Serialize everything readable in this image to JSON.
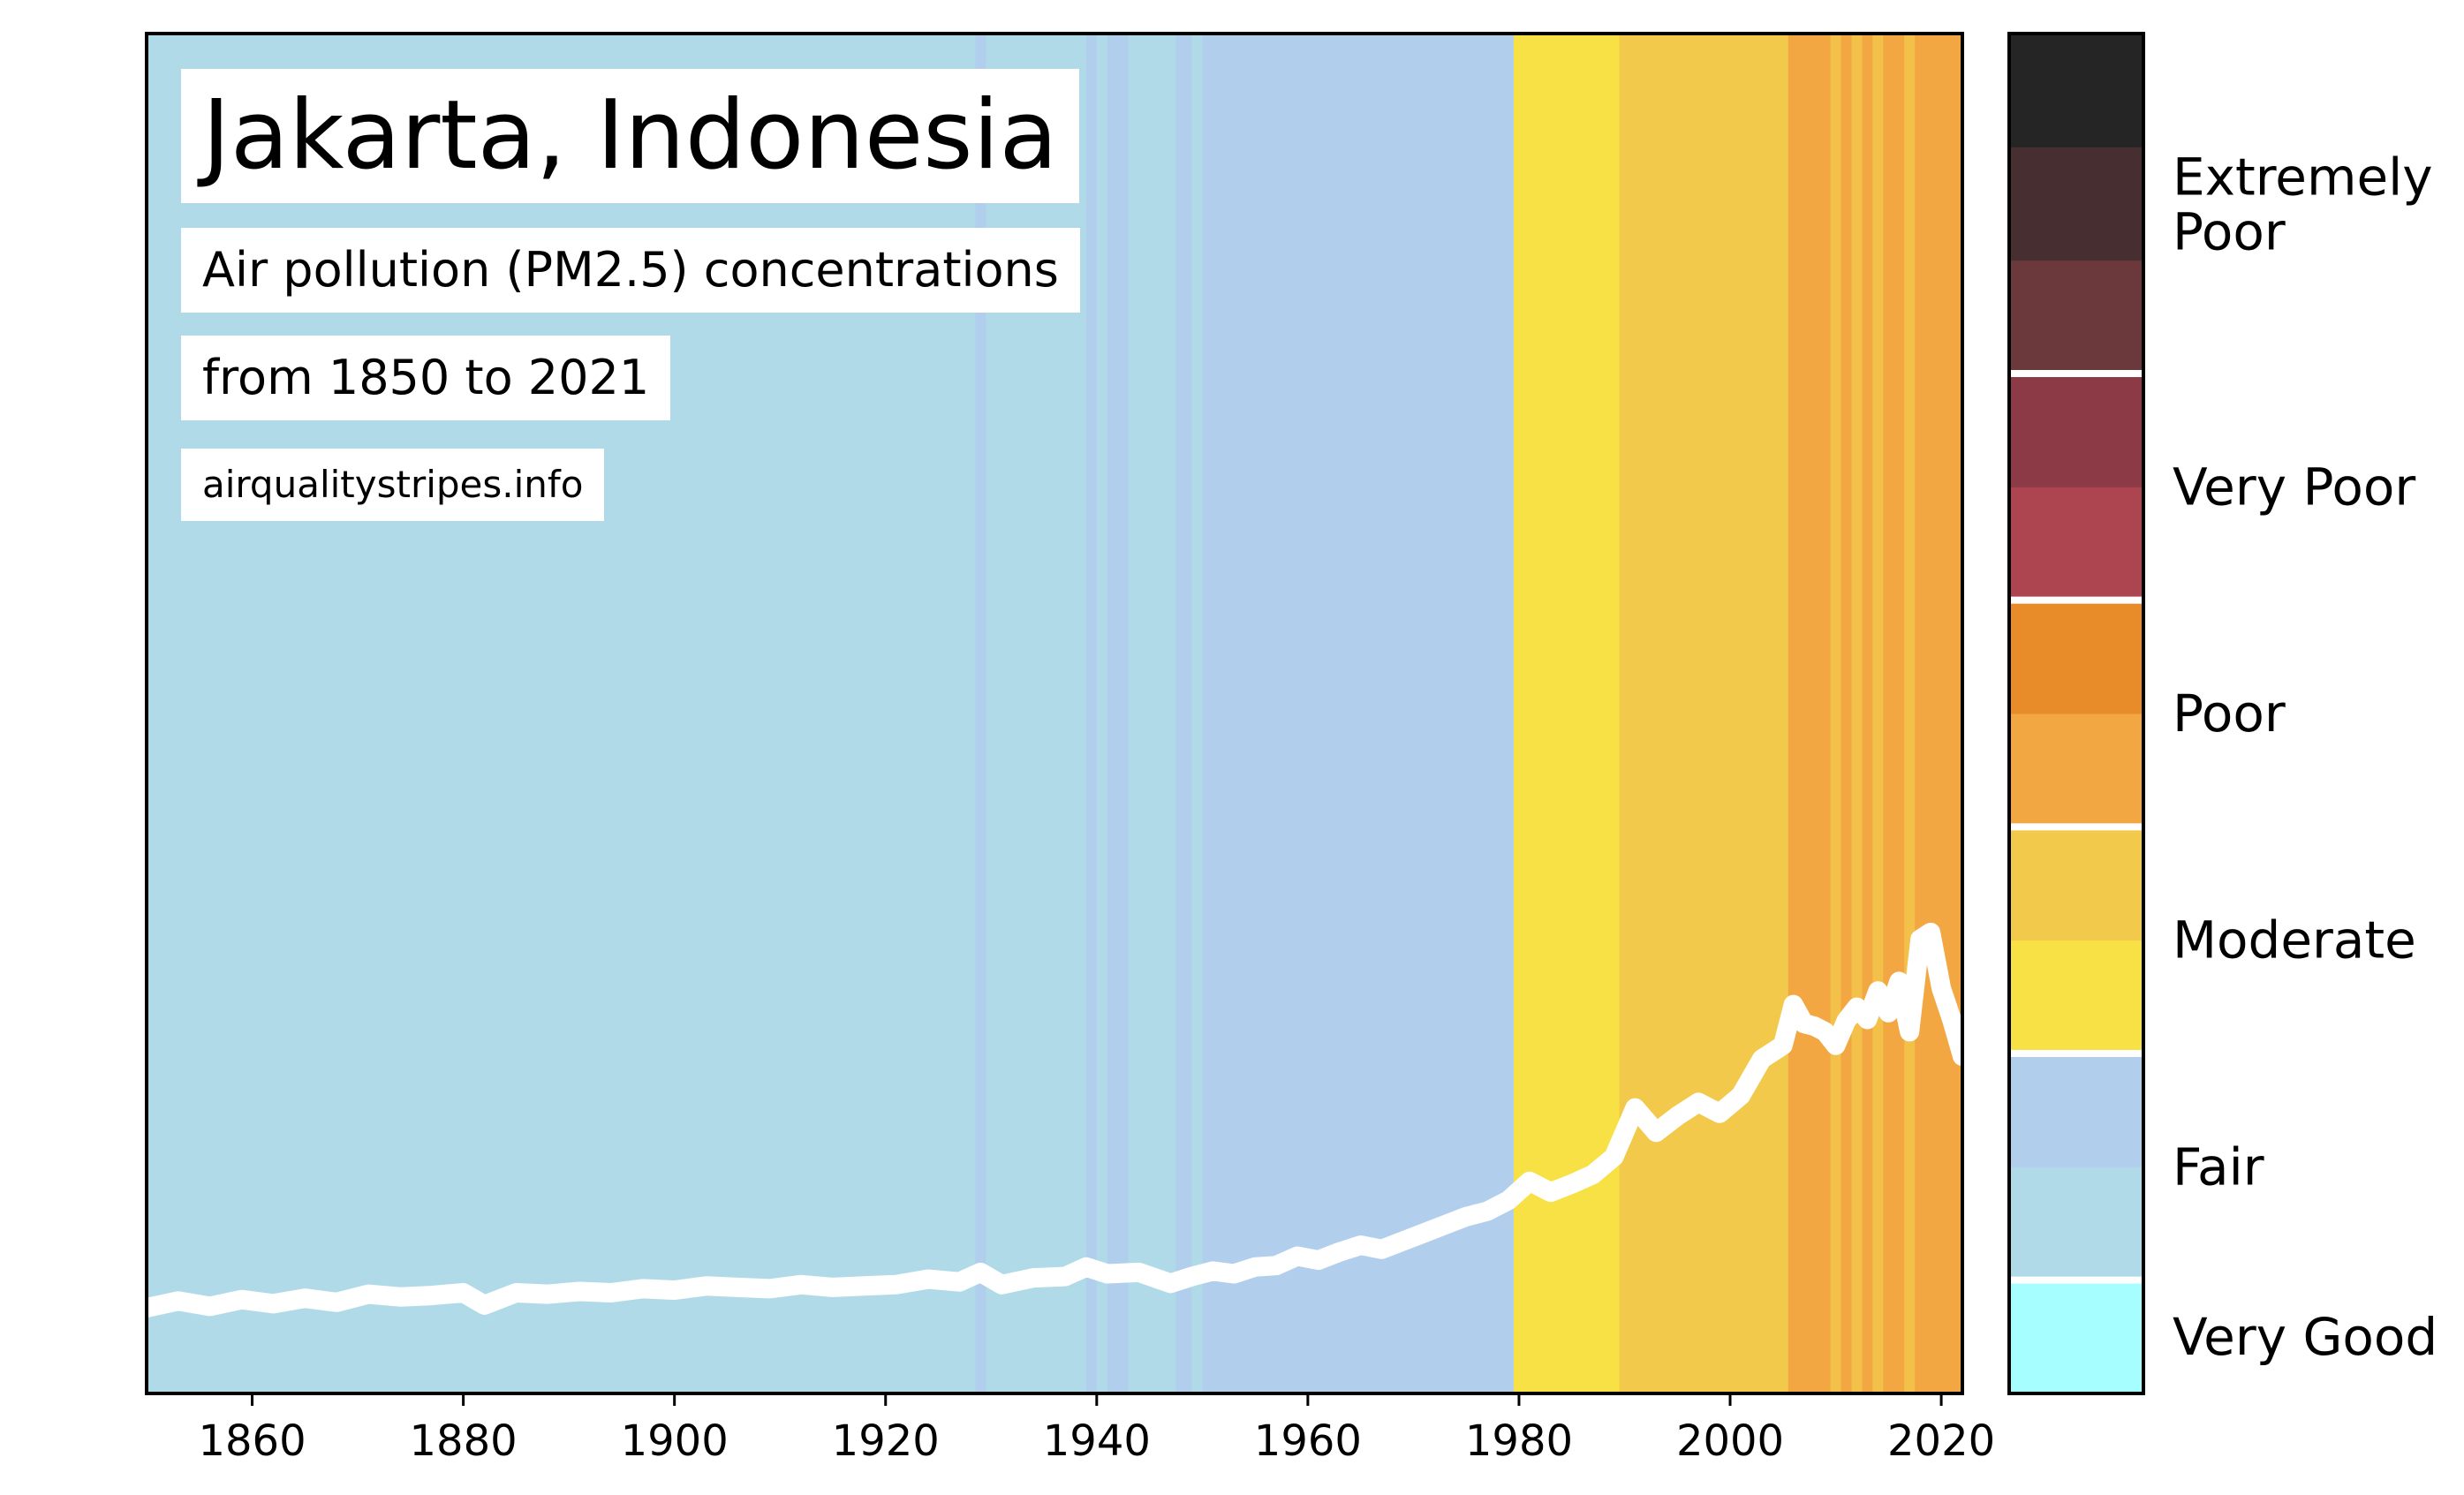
{
  "header": {
    "title": "Jakarta, Indonesia",
    "subtitle": "Air pollution (PM2.5) concentrations",
    "period": "from 1850 to 2021",
    "source": "airqualitystripes.info"
  },
  "chart_data": {
    "type": "area",
    "title": "Jakarta, Indonesia",
    "subtitle": "Air pollution (PM2.5) concentrations",
    "xlabel": "",
    "ylabel": "",
    "xlim": [
      1850,
      2022
    ],
    "ylim": [
      0,
      100
    ],
    "grid": false,
    "x_ticks": [
      1860,
      1880,
      1900,
      1920,
      1940,
      1960,
      1980,
      2000,
      2020
    ],
    "stripe_colors": {
      "lightblue": "#b1dae9",
      "fairblue": "#b1cfed",
      "yellow": "#f8e144",
      "mustard": "#f2c94a",
      "orange": "#f2a742",
      "darkorange": "#e88c2a",
      "stripeyellow": "#f3c04a"
    },
    "stripes": [
      {
        "from": 1850,
        "to": 1928.5,
        "color": "#b1dae9"
      },
      {
        "from": 1928.5,
        "to": 1929.5,
        "color": "#b1cfed"
      },
      {
        "from": 1929.5,
        "to": 1939.0,
        "color": "#b1dae9"
      },
      {
        "from": 1939.0,
        "to": 1940.0,
        "color": "#b1cfed"
      },
      {
        "from": 1940.0,
        "to": 1941.0,
        "color": "#b1dae9"
      },
      {
        "from": 1941.0,
        "to": 1943.0,
        "color": "#b1cfed"
      },
      {
        "from": 1943.0,
        "to": 1947.5,
        "color": "#b1dae9"
      },
      {
        "from": 1947.5,
        "to": 1949.0,
        "color": "#b1cfed"
      },
      {
        "from": 1949.0,
        "to": 1950.0,
        "color": "#b1dae9"
      },
      {
        "from": 1950.0,
        "to": 1979.5,
        "color": "#b1cfed"
      },
      {
        "from": 1979.5,
        "to": 1989.5,
        "color": "#f8e144"
      },
      {
        "from": 1989.5,
        "to": 2005.5,
        "color": "#f2c94a"
      },
      {
        "from": 2005.5,
        "to": 2009.5,
        "color": "#f2a742"
      },
      {
        "from": 2009.5,
        "to": 2010.5,
        "color": "#f3c04a"
      },
      {
        "from": 2010.5,
        "to": 2011.5,
        "color": "#f2a742"
      },
      {
        "from": 2011.5,
        "to": 2012.5,
        "color": "#f3c04a"
      },
      {
        "from": 2012.5,
        "to": 2013.5,
        "color": "#f2a742"
      },
      {
        "from": 2013.5,
        "to": 2014.5,
        "color": "#f3c04a"
      },
      {
        "from": 2014.5,
        "to": 2016.5,
        "color": "#f2a742"
      },
      {
        "from": 2016.5,
        "to": 2017.5,
        "color": "#f3c04a"
      },
      {
        "from": 2017.5,
        "to": 2022,
        "color": "#f2a742"
      }
    ],
    "series": [
      {
        "x": [
          1850,
          1853,
          1856,
          1859,
          1862,
          1865,
          1868,
          1871,
          1874,
          1877,
          1880,
          1882,
          1885,
          1888,
          1891,
          1894,
          1897,
          1900,
          1903,
          1906,
          1909,
          1912,
          1915,
          1918,
          1921,
          1924,
          1927,
          1929,
          1931,
          1934,
          1937,
          1939,
          1941,
          1944,
          1947,
          1949,
          1951,
          1953,
          1955,
          1957,
          1959,
          1961,
          1963,
          1965,
          1967,
          1969,
          1971,
          1973,
          1975,
          1977,
          1979,
          1981,
          1983,
          1985,
          1987,
          1989,
          1991,
          1993,
          1995,
          1997,
          1999,
          2001,
          2003,
          2005,
          2006,
          2007,
          2008,
          2009,
          2010,
          2011,
          2012,
          2013,
          2014,
          2015,
          2016,
          2017,
          2018,
          2019,
          2020,
          2021,
          2022
        ],
        "values": [
          6.3,
          6.8,
          6.4,
          6.9,
          6.6,
          7.0,
          6.7,
          7.3,
          7.1,
          7.2,
          7.4,
          6.5,
          7.4,
          7.3,
          7.5,
          7.4,
          7.7,
          7.6,
          7.9,
          7.8,
          7.7,
          8.0,
          7.8,
          7.9,
          8.0,
          8.4,
          8.2,
          8.9,
          8.0,
          8.5,
          8.6,
          9.3,
          8.8,
          8.9,
          8.1,
          8.6,
          9.0,
          8.8,
          9.3,
          9.4,
          10.1,
          9.8,
          10.4,
          10.9,
          10.6,
          11.2,
          11.8,
          12.4,
          13.0,
          13.4,
          14.2,
          15.6,
          14.8,
          15.4,
          16.1,
          17.4,
          21.0,
          19.2,
          20.4,
          21.4,
          20.6,
          21.9,
          24.6,
          25.6,
          28.6,
          27.2,
          27.0,
          26.6,
          25.6,
          27.4,
          28.4,
          27.5,
          29.6,
          28.0,
          30.3,
          26.6,
          33.4,
          33.9,
          29.8,
          27.5,
          24.8
        ]
      }
    ]
  },
  "colorbar": {
    "colors": [
      "#a6fefe",
      "#b1dae9",
      "#b1cfed",
      "#f8e144",
      "#f2c94a",
      "#f2a742",
      "#e88c2a",
      "#ad4550",
      "#8b3a46",
      "#6b393c",
      "#472e31",
      "#252525"
    ],
    "categories": [
      "Very Good",
      "Fair",
      "Moderate",
      "Poor",
      "Very Poor",
      "Extremely Poor"
    ],
    "extremely_poor_lines": [
      "Extremely",
      "Poor"
    ]
  }
}
